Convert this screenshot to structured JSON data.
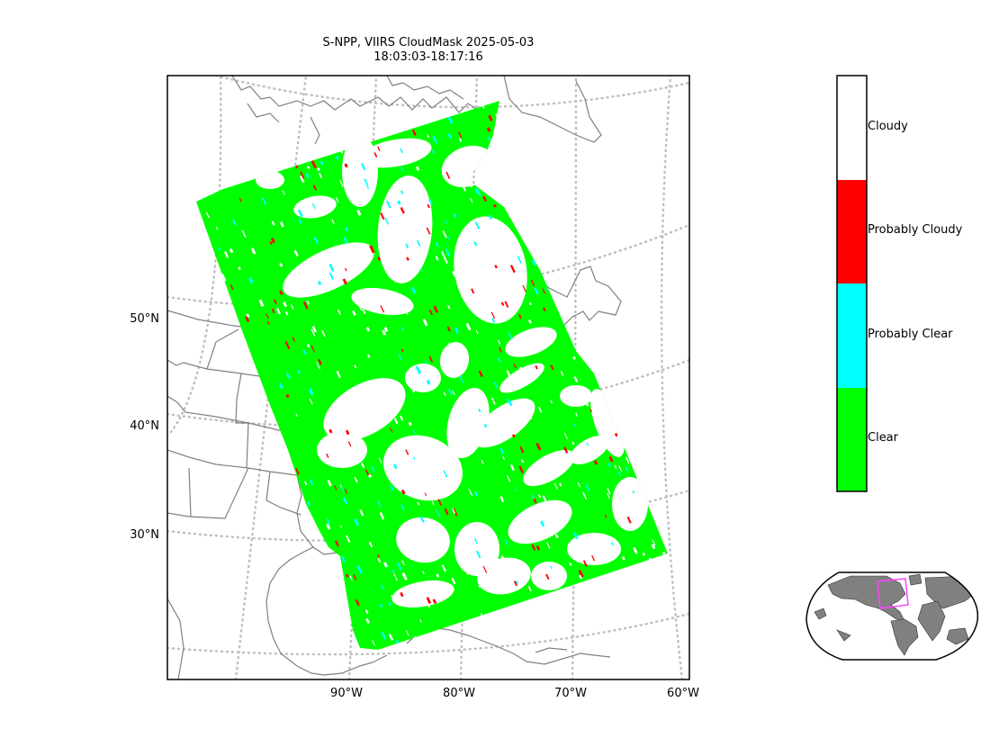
{
  "title": {
    "line1": "S-NPP, VIIRS CloudMask 2025-05-03",
    "line2": "18:03:03-18:17:16"
  },
  "lat_labels": [
    "50°N",
    "40°N",
    "30°N"
  ],
  "lon_labels": [
    "90°W",
    "80°W",
    "70°W",
    "60°W"
  ],
  "colorbar": {
    "classes": [
      {
        "label": "Cloudy",
        "color": "#ffffff"
      },
      {
        "label": "Probably Cloudy",
        "color": "#ff0000"
      },
      {
        "label": "Probably Clear",
        "color": "#00ffff"
      },
      {
        "label": "Clear",
        "color": "#00ff00"
      }
    ]
  },
  "colors": {
    "clear": "#00ff00",
    "cloudy": "#ffffff",
    "probably_cloudy": "#ff0000",
    "probably_clear": "#00ffff",
    "coastline": "#808080",
    "graticule": "#bfbfbf",
    "inset_land": "#808080",
    "inset_box": "#ff44ff"
  }
}
